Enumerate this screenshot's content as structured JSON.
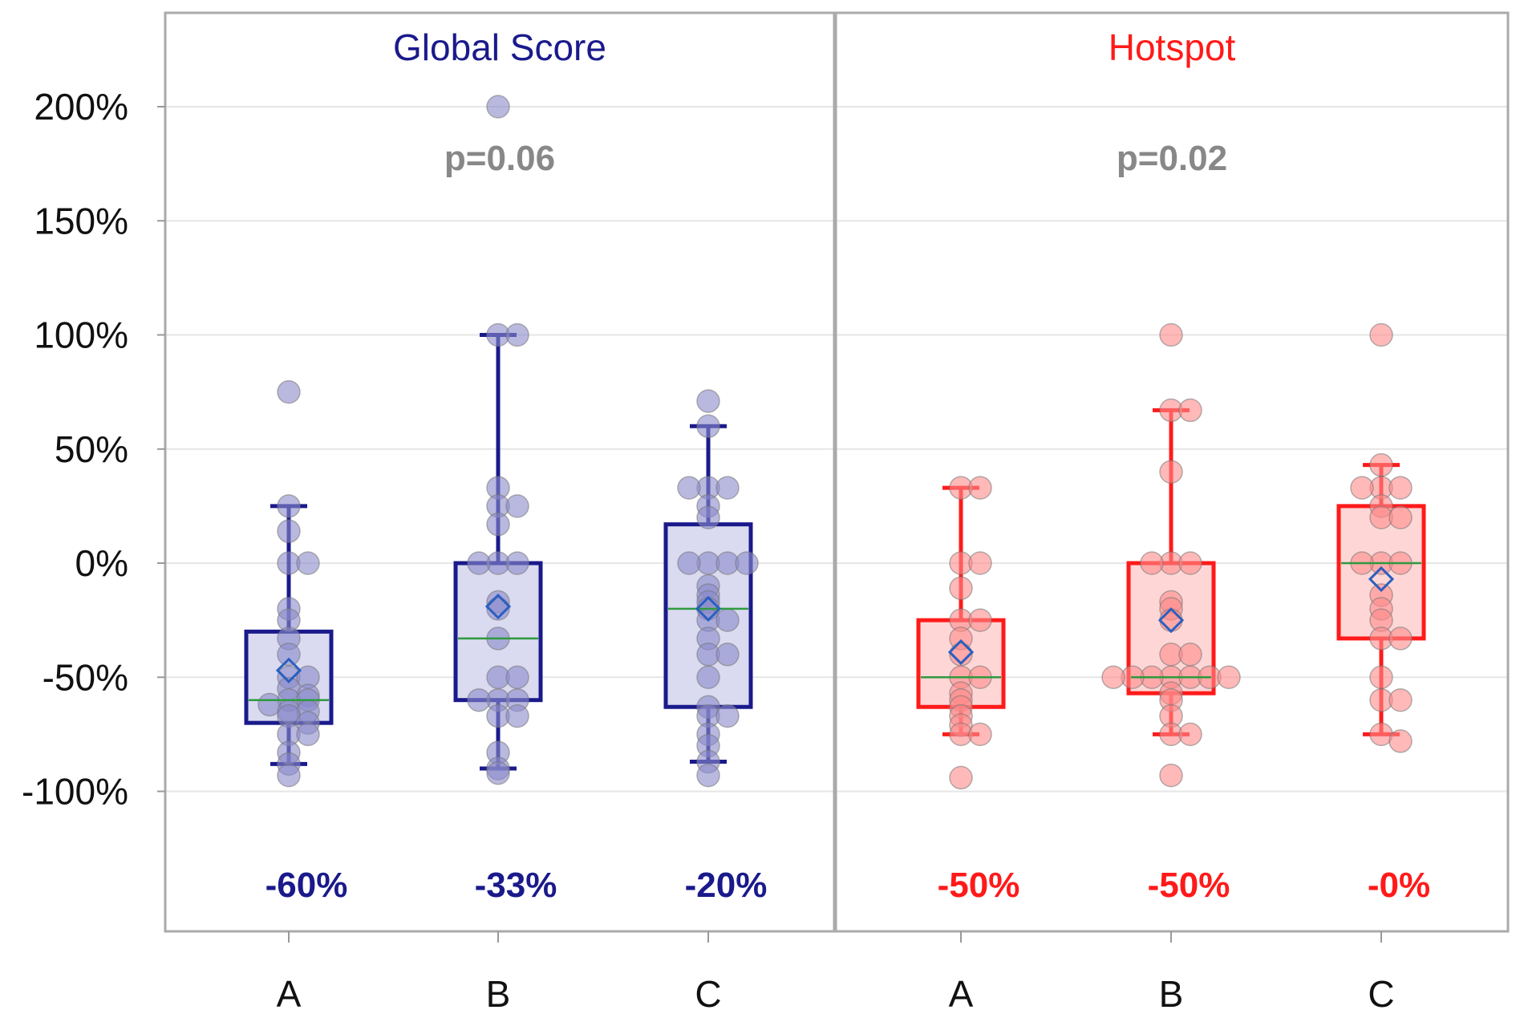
{
  "chart_data": {
    "type": "boxplot",
    "y_axis": {
      "range": [
        -155,
        225
      ],
      "ticks": [
        200,
        150,
        100,
        50,
        0,
        -50,
        -100
      ],
      "tick_labels": [
        "200%",
        "150%",
        "100%",
        "50%",
        "0%",
        "-50%",
        "-100%"
      ]
    },
    "categories": [
      "A",
      "B",
      "C"
    ],
    "panels": [
      {
        "title": "Global Score",
        "title_color": "#1a1a8c",
        "p_value": "p=0.06",
        "color": "#1a1a8c",
        "box_fill": "#dadaf0",
        "point_color": "#8a8acc",
        "groups": [
          {
            "category": "A",
            "whisker_low": -88,
            "q1": -70,
            "median": -60,
            "q3": -30,
            "whisker_high": 25,
            "mean": -47,
            "median_label": "-60%",
            "points": [
              75,
              25,
              14,
              0,
              0,
              -20,
              -25,
              -33,
              -40,
              -50,
              -50,
              -55,
              -58,
              -60,
              -60,
              -62,
              -65,
              -65,
              -67,
              -70,
              -75,
              -75,
              -83,
              -88,
              -93
            ]
          },
          {
            "category": "B",
            "whisker_low": -90,
            "q1": -60,
            "median": -33,
            "q3": 0,
            "whisker_high": 100,
            "mean": -19,
            "median_label": "-33%",
            "points": [
              200,
              100,
              100,
              33,
              25,
              25,
              17,
              0,
              0,
              0,
              -17,
              -20,
              -33,
              -50,
              -50,
              -60,
              -60,
              -60,
              -67,
              -67,
              -83,
              -90,
              -92
            ]
          },
          {
            "category": "C",
            "whisker_low": -87,
            "q1": -63,
            "median": -20,
            "q3": 17,
            "whisker_high": 60,
            "mean": -20,
            "median_label": "-20%",
            "points": [
              71,
              60,
              33,
              33,
              33,
              25,
              20,
              0,
              0,
              0,
              0,
              -10,
              -14,
              -17,
              -20,
              -25,
              -25,
              -33,
              -40,
              -40,
              -50,
              -63,
              -67,
              -67,
              -75,
              -80,
              -87,
              -93
            ]
          }
        ]
      },
      {
        "title": "Hotspot",
        "title_color": "#ff1a1a",
        "p_value": "p=0.02",
        "color": "#ff1a1a",
        "box_fill": "#ffd6d6",
        "point_color": "#ff8a8a",
        "groups": [
          {
            "category": "A",
            "whisker_low": -75,
            "q1": -63,
            "median": -50,
            "q3": -25,
            "whisker_high": 33,
            "mean": -39,
            "median_label": "-50%",
            "points": [
              33,
              33,
              0,
              0,
              -11,
              -25,
              -25,
              -33,
              -40,
              -50,
              -50,
              -57,
              -60,
              -63,
              -67,
              -71,
              -75,
              -75,
              -94
            ]
          },
          {
            "category": "B",
            "whisker_low": -75,
            "q1": -57,
            "median": -50,
            "q3": 0,
            "whisker_high": 67,
            "mean": -25,
            "median_label": "-50%",
            "points": [
              100,
              67,
              67,
              40,
              0,
              0,
              0,
              -17,
              -20,
              -25,
              -40,
              -40,
              -50,
              -50,
              -50,
              -50,
              -50,
              -50,
              -50,
              -57,
              -60,
              -67,
              -75,
              -75,
              -93
            ]
          },
          {
            "category": "C",
            "whisker_low": -75,
            "q1": -33,
            "median": 0,
            "q3": 25,
            "whisker_high": 43,
            "mean": -7,
            "median_label": "-0%",
            "points": [
              100,
              43,
              33,
              33,
              33,
              25,
              20,
              20,
              0,
              0,
              0,
              -14,
              -20,
              -25,
              -33,
              -33,
              -50,
              -60,
              -60,
              -75,
              -78
            ]
          }
        ]
      }
    ]
  }
}
